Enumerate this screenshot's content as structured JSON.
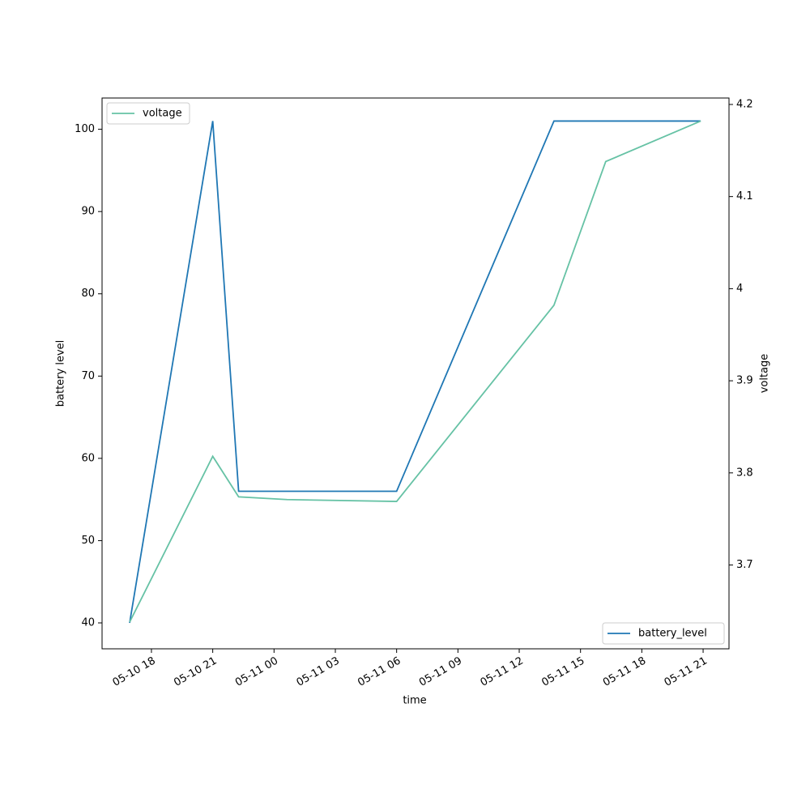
{
  "chart_data": {
    "type": "line",
    "x_label": "time",
    "y_label": "battery level",
    "y2_label": "voltage",
    "xlim": [
      "05-10 15:35",
      "05-11 22:16"
    ],
    "xticks": [
      "05-10 18",
      "05-10 21",
      "05-11 00",
      "05-11 03",
      "05-11 06",
      "05-11 09",
      "05-11 12",
      "05-11 15",
      "05-11 18",
      "05-11 21"
    ],
    "ylim": [
      36.85,
      103.8
    ],
    "yticks": [
      40,
      50,
      60,
      70,
      80,
      90,
      100
    ],
    "y2lim": [
      3.609,
      4.207
    ],
    "y2ticks": [
      3.7,
      3.8,
      3.9,
      4.0,
      4.1,
      4.2
    ],
    "series": [
      {
        "name": "battery_level",
        "color": "#1f77b4",
        "legend": "lower right",
        "x": [
          "05-10 16:56",
          "05-10 21:00",
          "05-10 22:16",
          "05-11 06:00",
          "05-11 13:42",
          "05-11 20:53"
        ],
        "values": [
          40,
          101,
          56,
          56,
          101,
          101
        ]
      },
      {
        "name": "voltage",
        "color": "#66c2a5",
        "axis": "y2",
        "legend": "upper left",
        "x": [
          "05-10 16:56",
          "05-10 21:00",
          "05-10 22:16",
          "05-11 00:38",
          "05-11 06:00",
          "05-11 13:42",
          "05-11 16:14",
          "05-11 20:53"
        ],
        "values": [
          3.638,
          3.818,
          3.774,
          3.771,
          3.769,
          3.982,
          4.138,
          4.182
        ]
      }
    ]
  }
}
